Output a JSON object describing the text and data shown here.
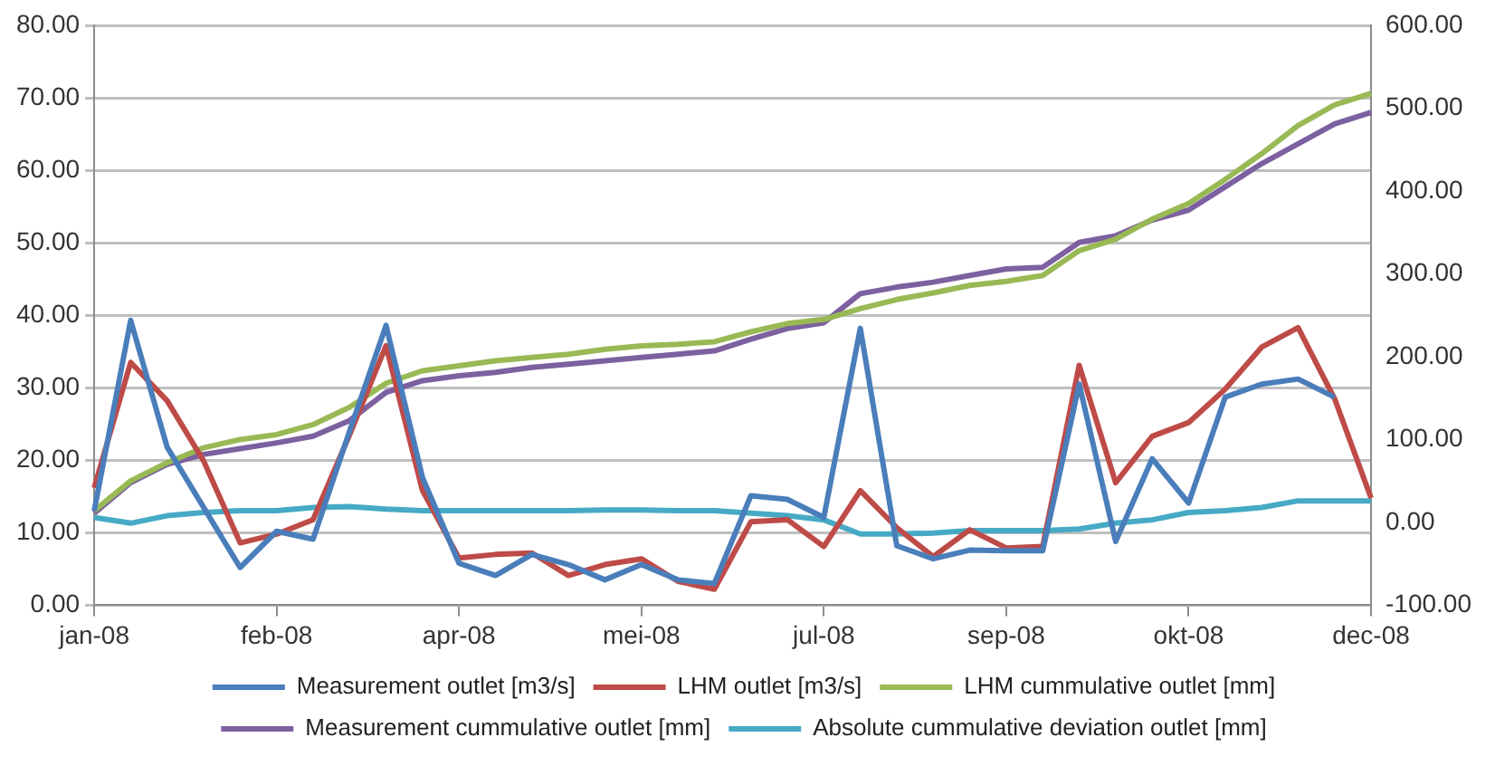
{
  "chart_data": {
    "type": "line",
    "categories": [
      "jan-08",
      null,
      null,
      null,
      null,
      "feb-08",
      null,
      null,
      null,
      null,
      "apr-08",
      null,
      null,
      null,
      null,
      "mei-08",
      null,
      null,
      null,
      null,
      "jul-08",
      null,
      null,
      null,
      null,
      "sep-08",
      null,
      null,
      null,
      null,
      "okt-08",
      null,
      null,
      null,
      null,
      "dec-08"
    ],
    "series": [
      {
        "name": "Measurement outlet [m3/s]",
        "color": "#4a7ebb",
        "values": [
          13,
          39.3,
          21.8,
          13.5,
          5.2,
          10.2,
          9.1,
          24,
          38.6,
          17.6,
          5.8,
          4.1,
          7,
          5.6,
          3.5,
          5.6,
          3.5,
          3,
          15.1,
          14.6,
          12.1,
          38.2,
          8.2,
          6.4,
          7.6,
          7.5,
          7.5,
          30.5,
          8.8,
          20.2,
          14.1,
          28.7,
          30.5,
          31.2,
          28.7,
          null
        ]
      },
      {
        "name": "LHM outlet [m3/s]",
        "color": "#be4b48",
        "values": [
          16.2,
          33.5,
          28.2,
          19.9,
          8.6,
          9.8,
          11.8,
          23.5,
          35.8,
          15.8,
          6.5,
          7,
          7.2,
          4.1,
          5.6,
          6.4,
          3.3,
          2.2,
          11.5,
          11.8,
          8.1,
          15.8,
          10.7,
          6.7,
          10.4,
          7.9,
          8.1,
          33.1,
          16.9,
          23.3,
          25.2,
          29.8,
          35.6,
          38.3,
          28.5,
          14.8
        ]
      },
      {
        "name": "LHM cummulative outlet [mm]",
        "color": "#98b954",
        "axis": "y2",
        "values": [
          14,
          50,
          72,
          90,
          100,
          106,
          118,
          139,
          168,
          183,
          189,
          195,
          199,
          203,
          209,
          213,
          215,
          218,
          230,
          240,
          245,
          258,
          269,
          277,
          286,
          291,
          298,
          328,
          342,
          366,
          385,
          414,
          445,
          479,
          504,
          518
        ]
      },
      {
        "name": "Measurement cummulative outlet [mm]",
        "color": "#7d60a0",
        "axis": "y2",
        "values": [
          11,
          48,
          70,
          82,
          89,
          96,
          104,
          123,
          157,
          171,
          177,
          181,
          187,
          191,
          195,
          199,
          203,
          207,
          221,
          234,
          241,
          276,
          284,
          290,
          298,
          306,
          308,
          338,
          346,
          365,
          377,
          405,
          433,
          457,
          481,
          495
        ]
      },
      {
        "name": "Absolute cummulative deviation outlet [mm]",
        "color": "#46aac5",
        "axis": "y2",
        "values": [
          6,
          -1,
          8,
          12,
          14,
          14,
          18,
          19,
          16,
          14,
          14,
          14,
          14,
          14,
          15,
          15,
          14,
          14,
          11,
          8,
          3,
          -14,
          -14,
          -13,
          -10,
          -10,
          -10,
          -8,
          -1,
          3,
          12,
          14,
          18,
          26,
          26,
          26
        ]
      }
    ],
    "ylim": [
      0,
      80
    ],
    "yticks": [
      {
        "value": 0,
        "label": "0.00"
      },
      {
        "value": 10,
        "label": "10.00"
      },
      {
        "value": 20,
        "label": "20.00"
      },
      {
        "value": 30,
        "label": "30.00"
      },
      {
        "value": 40,
        "label": "40.00"
      },
      {
        "value": 50,
        "label": "50.00"
      },
      {
        "value": 60,
        "label": "60.00"
      },
      {
        "value": 70,
        "label": "70.00"
      },
      {
        "value": 80,
        "label": "80.00"
      }
    ],
    "y2lim": [
      -100,
      600
    ],
    "y2ticks": [
      {
        "value": -100,
        "label": "-100.00"
      },
      {
        "value": 0,
        "label": "0.00"
      },
      {
        "value": 100,
        "label": "100.00"
      },
      {
        "value": 200,
        "label": "200.00"
      },
      {
        "value": 300,
        "label": "300.00"
      },
      {
        "value": 400,
        "label": "400.00"
      },
      {
        "value": 500,
        "label": "500.00"
      },
      {
        "value": 600,
        "label": "600.00"
      }
    ],
    "grid": "y",
    "legend": "bottom",
    "marker": "none",
    "line_style": "solid"
  }
}
